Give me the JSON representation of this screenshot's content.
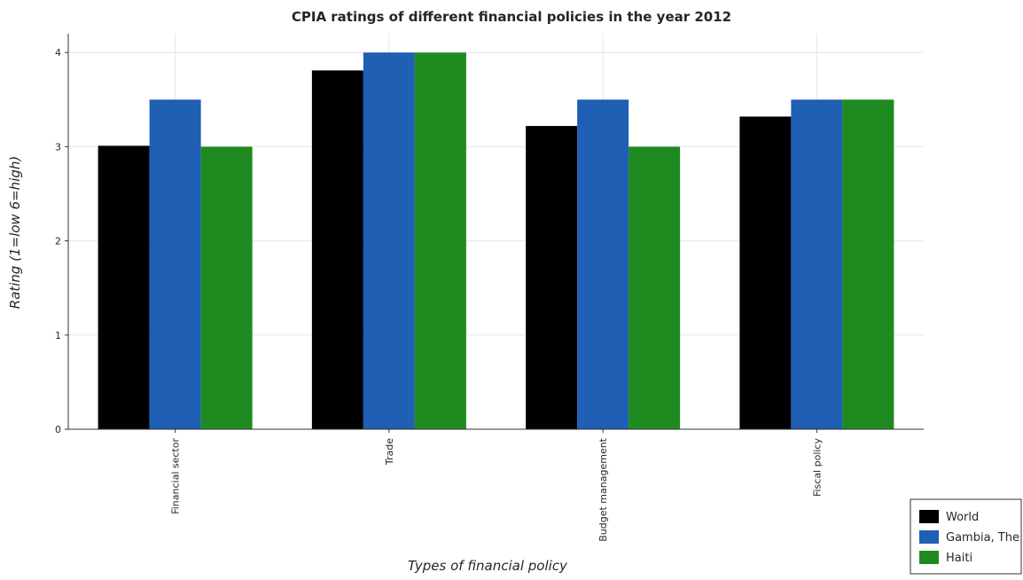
{
  "chart_data": {
    "type": "bar",
    "title": "CPIA ratings of different financial policies in the year 2012",
    "xlabel": "Types of financial policy",
    "ylabel": "Rating (1=low 6=high)",
    "categories": [
      "Financial sector",
      "Trade",
      "Budget management",
      "Fiscal policy"
    ],
    "ylim": [
      0,
      4.2
    ],
    "yticks": [
      "0",
      "1",
      "2",
      "3",
      "4"
    ],
    "grid": true,
    "legend_position": "bottom-right",
    "series": [
      {
        "name": "World",
        "color": "#000000",
        "values": [
          3.01,
          3.81,
          3.22,
          3.32
        ]
      },
      {
        "name": "Gambia, The",
        "color": "#1f5fb4",
        "values": [
          3.5,
          4.0,
          3.5,
          3.5
        ]
      },
      {
        "name": "Haiti",
        "color": "#1f8a1f",
        "values": [
          3.0,
          4.0,
          3.0,
          3.5
        ]
      }
    ]
  }
}
